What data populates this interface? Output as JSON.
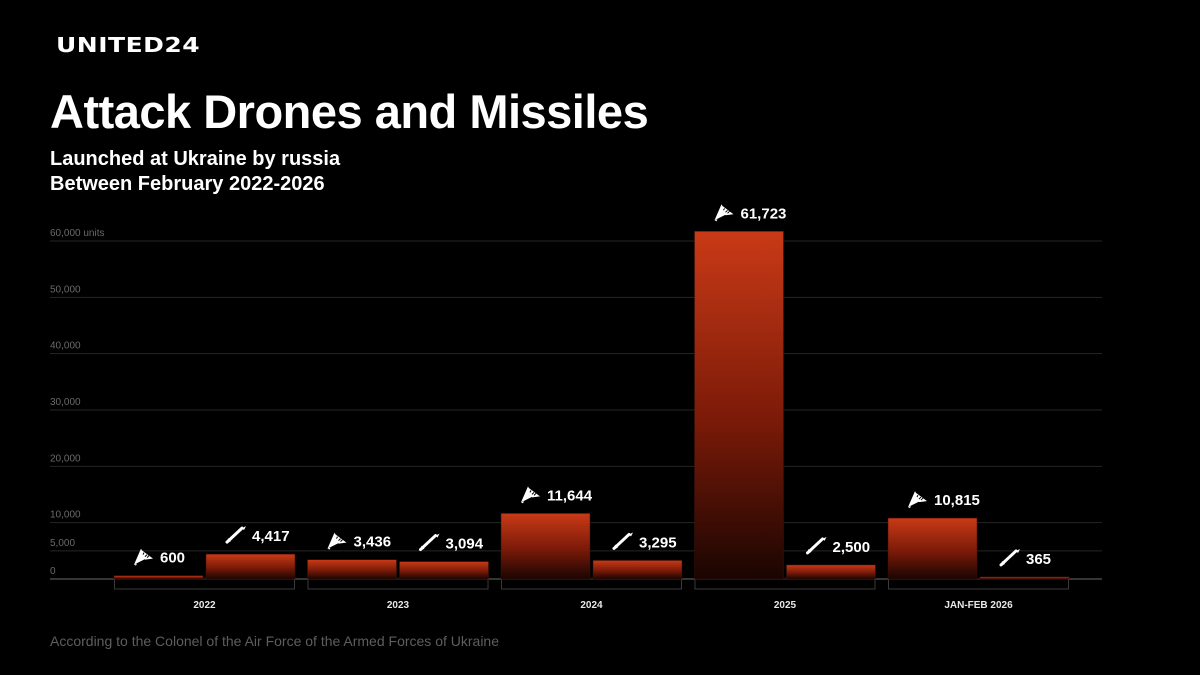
{
  "brand": "UNITED24",
  "title": "Attack Drones and Missiles",
  "subtitle_line1": "Launched at Ukraine by russia",
  "subtitle_line2": "Between February 2022-2026",
  "footer": "According to the Colonel of the Air Force of the Armed Forces of Ukraine",
  "colors": {
    "background": "#000000",
    "bar_top": "#c93a17",
    "bar_bottom": "#1a0502",
    "grid": "#262626"
  },
  "chart_data": {
    "type": "bar",
    "title": "Attack Drones and Missiles",
    "xlabel": "",
    "ylabel": "units",
    "ylim": [
      0,
      65000
    ],
    "y_ticks": [
      0,
      5000,
      10000,
      20000,
      30000,
      40000,
      50000,
      60000
    ],
    "y_tick_labels": [
      "0",
      "5,000",
      "10,000",
      "20,000",
      "30,000",
      "40,000",
      "50,000",
      "60,000 units"
    ],
    "categories": [
      "2022",
      "2023",
      "2024",
      "2025",
      "JAN-FEB 2026"
    ],
    "series": [
      {
        "name": "Attack drones",
        "icon": "drone-icon",
        "values": [
          600,
          3436,
          11644,
          61723,
          10815
        ],
        "labels": [
          "600",
          "3,436",
          "11,644",
          "61,723",
          "10,815"
        ]
      },
      {
        "name": "Missiles",
        "icon": "missile-icon",
        "values": [
          4417,
          3094,
          3295,
          2500,
          365
        ],
        "labels": [
          "4,417",
          "3,094",
          "3,295",
          "2,500",
          "365"
        ]
      }
    ]
  }
}
